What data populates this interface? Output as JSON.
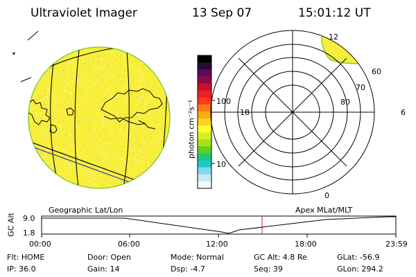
{
  "header": {
    "title": "Ultraviolet Imager",
    "date": "13 Sep 07",
    "time": "15:01:12 UT"
  },
  "colorbar": {
    "unit_label": "photon cm⁻²s⁻¹",
    "tick_100": "100",
    "tick_10": "10",
    "colors": [
      "#000000",
      "#2a0a3a",
      "#5a0a5a",
      "#8a0a4a",
      "#c8102a",
      "#e8202a",
      "#ff3a1a",
      "#ff7a10",
      "#ffaa10",
      "#ffd020",
      "#ffff30",
      "#d8f020",
      "#a8e020",
      "#60d020",
      "#20c878",
      "#20c8c8",
      "#80d8ec",
      "#c8e8f4",
      "#f4f8fa"
    ]
  },
  "left_panel": {
    "label": "Geographic Lat/Lon",
    "fill_color": "#f7ef3c"
  },
  "right_panel": {
    "label": "Apex MLat/MLT",
    "mlt_top": "12",
    "mlt_left": "18",
    "mlt_right": "6",
    "mlt_bottom": "0",
    "lat_60": "60",
    "lat_70": "70",
    "lat_80": "80"
  },
  "altitude_plot": {
    "axis_label": "GC Alt",
    "y_high": "9.0",
    "y_low": "1.8",
    "x_ticks": [
      "00:00",
      "06:00",
      "12:00",
      "18:00",
      "23:59"
    ],
    "marker_color": "#d02020"
  },
  "status": {
    "flt": "Flt: HOME",
    "ip": "IP: 36.0",
    "door": "Door: Open",
    "gain": "Gain: 14",
    "mode": "Mode: Normal",
    "dsp": "Dsp:    -4.7",
    "gc_alt": "GC Alt: 4.8 Re",
    "seq": "Seq: 39",
    "glat": "GLat: -56.9",
    "glon": "GLon: 294.2"
  }
}
